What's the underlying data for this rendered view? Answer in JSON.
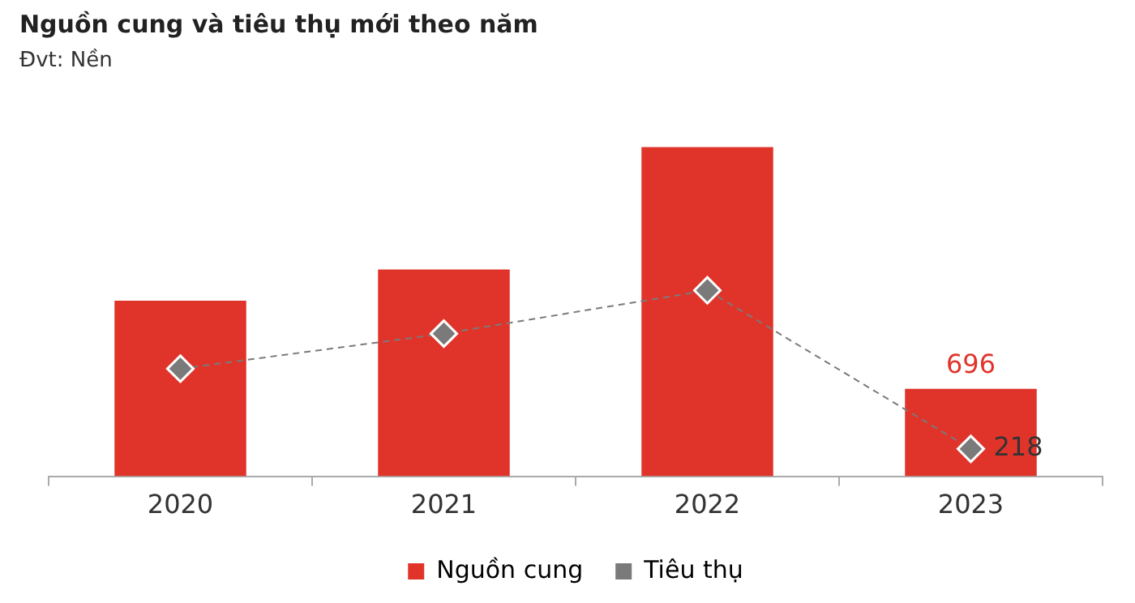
{
  "chart_data": {
    "type": "bar",
    "title": "Nguồn cung và tiêu thụ mới theo năm",
    "subtitle": "Đvt: Nền",
    "categories": [
      "2020",
      "2021",
      "2022",
      "2023"
    ],
    "series": [
      {
        "name": "Nguồn cung",
        "color": "#e0342b",
        "values": [
          1398,
          1648,
          2623,
          696
        ],
        "value_labels": [
          null,
          null,
          null,
          "696"
        ]
      },
      {
        "name": "Tiêu thụ",
        "type": "line",
        "color": "#7a7a7a",
        "values": [
          857,
          1136,
          1481,
          218
        ],
        "value_labels": [
          null,
          null,
          null,
          "218"
        ],
        "marker": "diamond",
        "line_style": "dashed"
      }
    ],
    "legend": "bottom",
    "grid": false
  }
}
